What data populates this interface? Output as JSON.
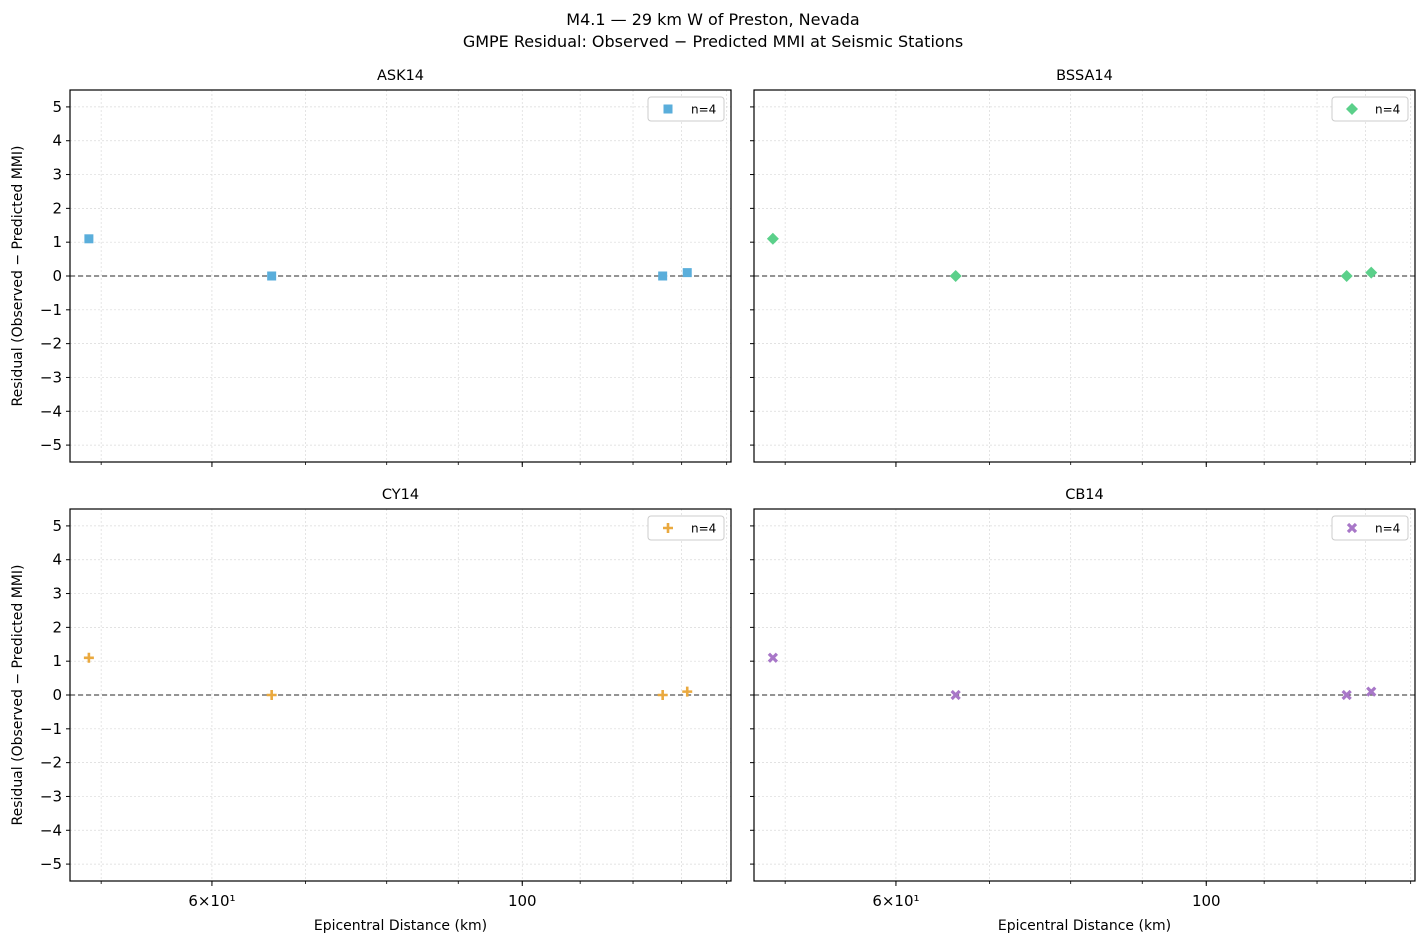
{
  "figure": {
    "title_line1": "M4.1 — 29 km W of Preston, Nevada",
    "title_line2": "GMPE Residual: Observed − Predicted MMI at Seismic Stations",
    "ylabel": "Residual (Observed − Predicted MMI)",
    "xlabel": "Epicentral Distance (km)"
  },
  "chart_data": [
    {
      "type": "scatter",
      "title": "ASK14",
      "xscale": "log",
      "xlim": [
        47.5,
        141
      ],
      "ylim": [
        -5.5,
        5.5
      ],
      "yticks": [
        5,
        4,
        3,
        2,
        1,
        0,
        -1,
        -2,
        -3,
        -4,
        -5
      ],
      "xticks_labeled": [
        {
          "value": 60,
          "label": "6×10¹"
        },
        {
          "value": 100,
          "label": "100"
        }
      ],
      "grid": true,
      "reference_line": 0,
      "legend_position": "top-right",
      "legend_label": "n=4",
      "marker": "square",
      "color": "#5aaedb",
      "x": [
        49.0,
        66.2,
        126.0,
        131.2
      ],
      "y": [
        1.1,
        0.0,
        0.0,
        0.1
      ]
    },
    {
      "type": "scatter",
      "title": "BSSA14",
      "xscale": "log",
      "xlim": [
        47.5,
        141
      ],
      "ylim": [
        -5.5,
        5.5
      ],
      "yticks": [
        5,
        4,
        3,
        2,
        1,
        0,
        -1,
        -2,
        -3,
        -4,
        -5
      ],
      "xticks_labeled": [
        {
          "value": 60,
          "label": "6×10¹"
        },
        {
          "value": 100,
          "label": "100"
        }
      ],
      "grid": true,
      "reference_line": 0,
      "legend_position": "top-right",
      "legend_label": "n=4",
      "marker": "diamond",
      "color": "#5bd08a",
      "x": [
        49.0,
        66.2,
        126.0,
        131.2
      ],
      "y": [
        1.1,
        0.0,
        0.0,
        0.1
      ]
    },
    {
      "type": "scatter",
      "title": "CY14",
      "xscale": "log",
      "xlim": [
        47.5,
        141
      ],
      "ylim": [
        -5.5,
        5.5
      ],
      "yticks": [
        5,
        4,
        3,
        2,
        1,
        0,
        -1,
        -2,
        -3,
        -4,
        -5
      ],
      "xticks_labeled": [
        {
          "value": 60,
          "label": "6×10¹"
        },
        {
          "value": 100,
          "label": "100"
        }
      ],
      "grid": true,
      "reference_line": 0,
      "legend_position": "top-right",
      "legend_label": "n=4",
      "marker": "plus",
      "color": "#eaa93f",
      "x": [
        49.0,
        66.2,
        126.0,
        131.2
      ],
      "y": [
        1.1,
        0.0,
        0.0,
        0.1
      ]
    },
    {
      "type": "scatter",
      "title": "CB14",
      "xscale": "log",
      "xlim": [
        47.5,
        141
      ],
      "ylim": [
        -5.5,
        5.5
      ],
      "yticks": [
        5,
        4,
        3,
        2,
        1,
        0,
        -1,
        -2,
        -3,
        -4,
        -5
      ],
      "xticks_labeled": [
        {
          "value": 60,
          "label": "6×10¹"
        },
        {
          "value": 100,
          "label": "100"
        }
      ],
      "grid": true,
      "reference_line": 0,
      "legend_position": "top-right",
      "legend_label": "n=4",
      "marker": "x",
      "color": "#a877c8",
      "x": [
        49.0,
        66.2,
        126.0,
        131.2
      ],
      "y": [
        1.1,
        0.0,
        0.0,
        0.1
      ]
    }
  ]
}
